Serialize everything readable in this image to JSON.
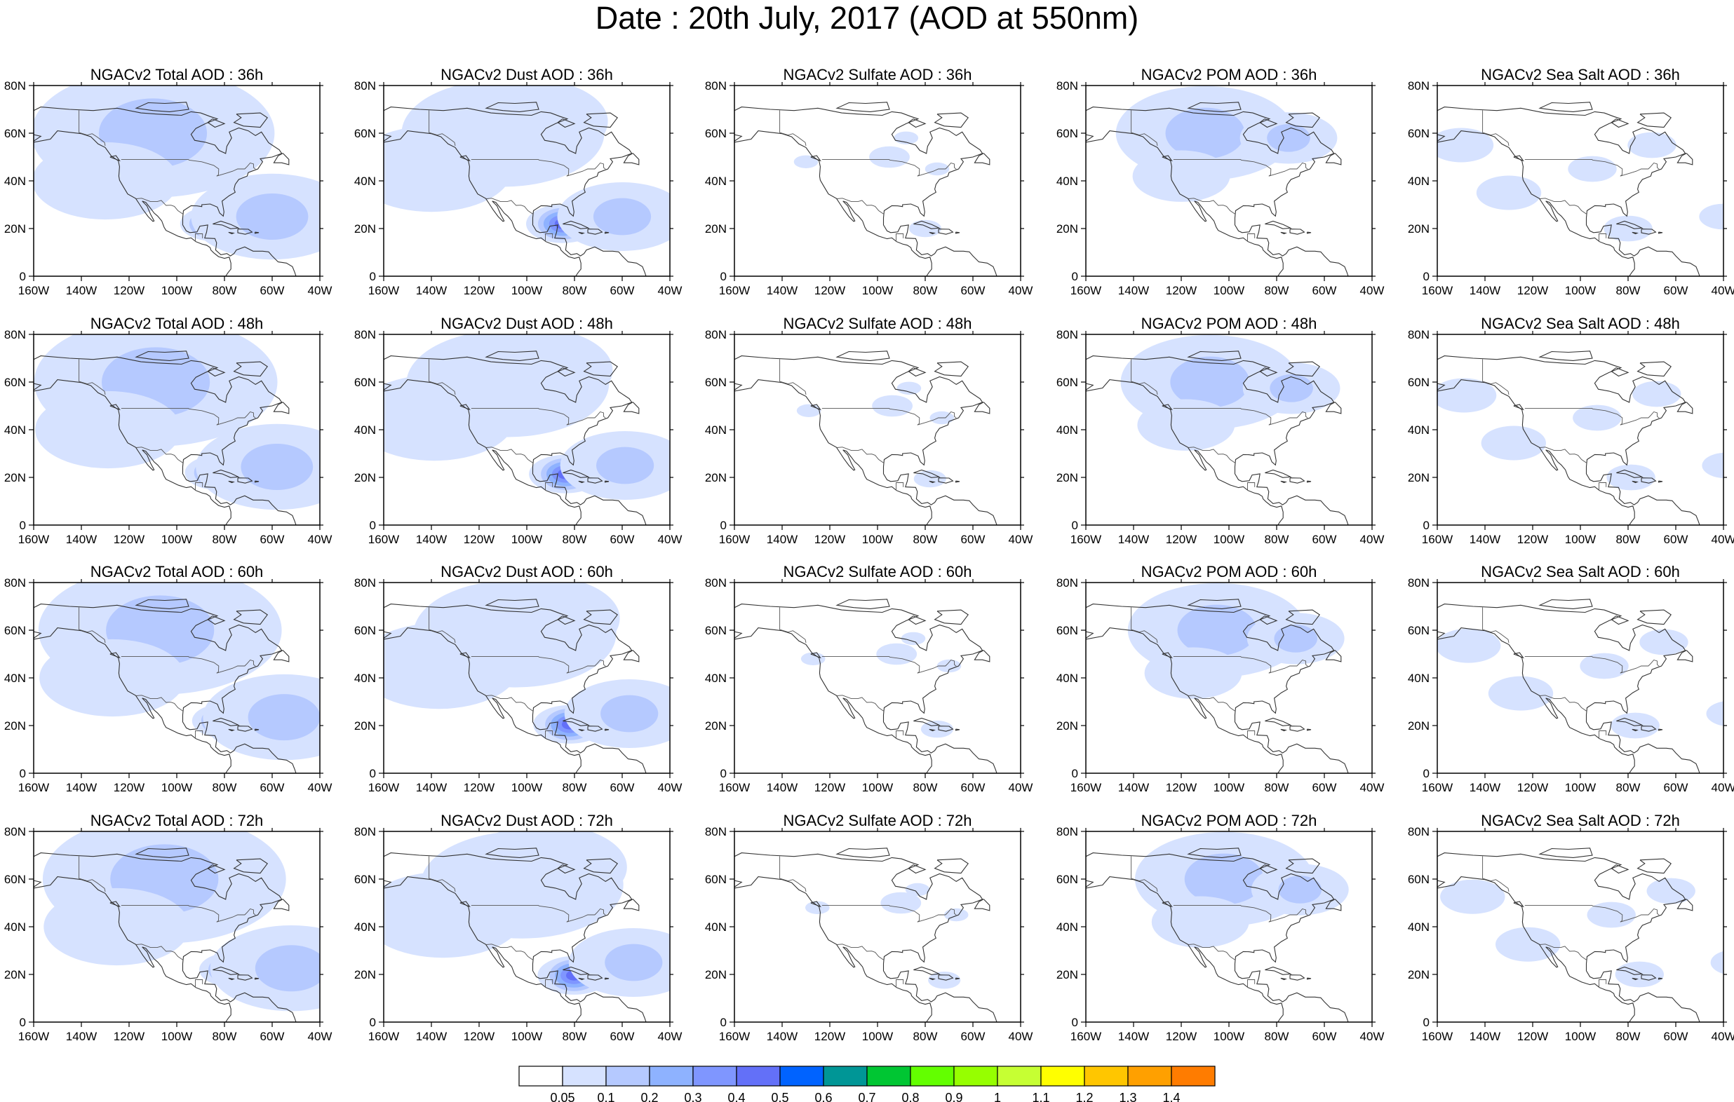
{
  "title": "Date : 20th July, 2017 (AOD at 550nm)",
  "panel_titles": [
    [
      "NGACv2 Total AOD : 36h",
      "NGACv2 Dust AOD : 36h",
      "NGACv2 Sulfate AOD : 36h",
      "NGACv2 POM AOD : 36h",
      "NGACv2 Sea Salt AOD : 36h"
    ],
    [
      "NGACv2 Total AOD : 48h",
      "NGACv2 Dust AOD : 48h",
      "NGACv2 Sulfate AOD : 48h",
      "NGACv2 POM AOD : 48h",
      "NGACv2 Sea Salt AOD : 48h"
    ],
    [
      "NGACv2 Total AOD : 60h",
      "NGACv2 Dust AOD : 60h",
      "NGACv2 Sulfate AOD : 60h",
      "NGACv2 POM AOD : 60h",
      "NGACv2 Sea Salt AOD : 60h"
    ],
    [
      "NGACv2 Total AOD : 72h",
      "NGACv2 Dust AOD : 72h",
      "NGACv2 Sulfate AOD : 72h",
      "NGACv2 POM AOD : 72h",
      "NGACv2 Sea Salt  AOD : 72h"
    ]
  ],
  "lon_ticks": [
    "160W",
    "140W",
    "120W",
    "100W",
    "80W",
    "60W",
    "40W"
  ],
  "lat_ticks": [
    "80N",
    "60N",
    "40N",
    "20N",
    "0"
  ],
  "colorbar": {
    "labels": [
      "0.05",
      "0.1",
      "0.2",
      "0.3",
      "0.4",
      "0.5",
      "0.6",
      "0.7",
      "0.8",
      "0.9",
      "1",
      "1.1",
      "1.2",
      "1.3",
      "1.4"
    ],
    "colors": [
      "#ffffff",
      "#d6e2ff",
      "#b5c9ff",
      "#8eb2ff",
      "#7f96ff",
      "#6370f8",
      "#0063ff",
      "#009696",
      "#00c633",
      "#63ff00",
      "#96ff00",
      "#c6ff33",
      "#ffff00",
      "#ffc600",
      "#ffa000",
      "#ff7c00",
      "#ff1900"
    ]
  }
}
